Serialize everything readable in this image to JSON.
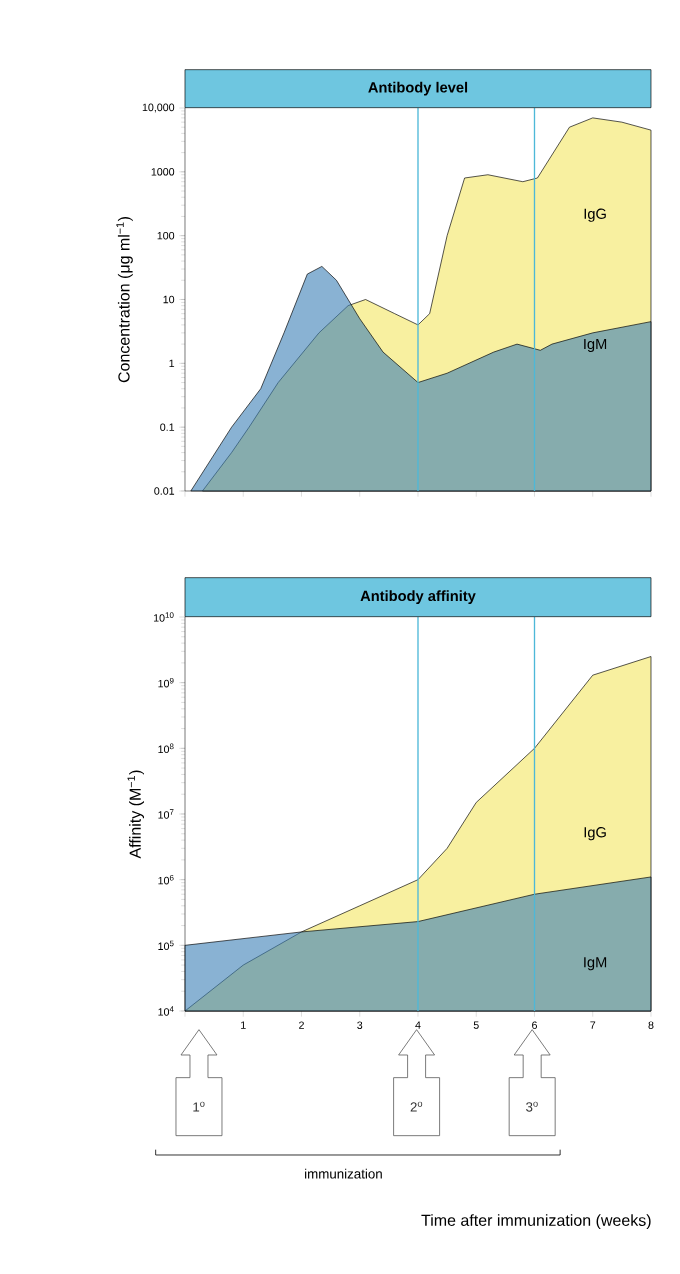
{
  "chart_data": [
    {
      "type": "area",
      "title": "Antibody level",
      "ylabel": "Concentration (μg ml$^{−1}$)",
      "log": "y",
      "xlim": [
        0,
        8
      ],
      "ylim": [
        0.01,
        10000
      ],
      "xticks": [
        0,
        1,
        2,
        3,
        4,
        5,
        6,
        7,
        8
      ],
      "yticks": [
        {
          "value": 0.01,
          "label": "0.01"
        },
        {
          "value": 0.1,
          "label": "0.1"
        },
        1,
        10,
        100,
        1000,
        {
          "value": 10000,
          "label": "10,000"
        }
      ],
      "tick_labels": "y",
      "series": [
        {
          "name": "IgG",
          "color": "#f8f0a0",
          "x": [
            0.3,
            0.8,
            1.1,
            1.6,
            2.3,
            2.8,
            3.1,
            3.6,
            4.0,
            4.2,
            4.5,
            4.8,
            5.2,
            5.8,
            6.05,
            6.6,
            7.0,
            7.5,
            8.0
          ],
          "values": [
            0.01,
            0.04,
            0.1,
            0.5,
            3,
            8,
            10,
            6,
            4,
            6,
            100,
            800,
            900,
            700,
            800,
            5000,
            7000,
            6000,
            4500
          ]
        },
        {
          "name": "IgM",
          "color": "#3b7fb5",
          "x": [
            0.1,
            0.8,
            1.3,
            1.7,
            2.1,
            2.35,
            2.6,
            3.0,
            3.4,
            4.0,
            4.5,
            5.3,
            5.7,
            6.1,
            6.3,
            7.0,
            8.0
          ],
          "values": [
            0.01,
            0.1,
            0.4,
            3,
            25,
            33,
            20,
            5,
            1.5,
            0.5,
            0.7,
            1.5,
            2,
            1.6,
            2,
            3,
            4.5
          ]
        }
      ],
      "ref_lines": [
        {
          "axis": "x",
          "value": 4,
          "color": "#4db8d8"
        },
        {
          "axis": "x",
          "value": 6,
          "color": "#4db8d8"
        }
      ]
    },
    {
      "type": "area",
      "title": "Antibody affinity",
      "ylabel": "Affinity (M$^{−1}$)",
      "xlabel": "Time after immunization (weeks)",
      "log": "y",
      "xlim": [
        0,
        8
      ],
      "ylim": [
        10000,
        10000000000
      ],
      "xticks": [
        {
          "value": 0,
          "label": null
        },
        1,
        2,
        3,
        4,
        5,
        6,
        7,
        8
      ],
      "yticks": [
        {
          "value": 10000,
          "label": "10$^{4}$"
        },
        {
          "value": 100000,
          "label": "10$^{5}$"
        },
        {
          "value": 1000000,
          "label": "10$^{6}$"
        },
        {
          "value": 10000000,
          "label": "10$^{7}$"
        },
        {
          "value": 100000000,
          "label": "10$^{8}$"
        },
        {
          "value": 1000000000,
          "label": "10$^{9}$"
        },
        {
          "value": 10000000000,
          "label": "10$^{10}$"
        }
      ],
      "series": [
        {
          "name": "IgG",
          "color": "#f8f0a0",
          "x": [
            0,
            1,
            2,
            3,
            4,
            4.5,
            5,
            6,
            7,
            8
          ],
          "values": [
            10000,
            50000,
            160000,
            400000,
            1000000,
            3000000,
            15000000,
            100000000,
            1300000000,
            2500000000
          ]
        },
        {
          "name": "IgM",
          "color": "#3b7fb5",
          "x": [
            0,
            2,
            4,
            6,
            8
          ],
          "values": [
            100000,
            160000,
            230000,
            600000,
            1100000
          ]
        }
      ],
      "ref_lines": [
        {
          "axis": "x",
          "value": 4,
          "color": "#4db8d8"
        },
        {
          "axis": "x",
          "value": 6,
          "color": "#4db8d8"
        }
      ],
      "annotations": [
        "1$^{o}$",
        "2$^{o}$",
        "3$^{o}$",
        "immunization"
      ]
    }
  ]
}
